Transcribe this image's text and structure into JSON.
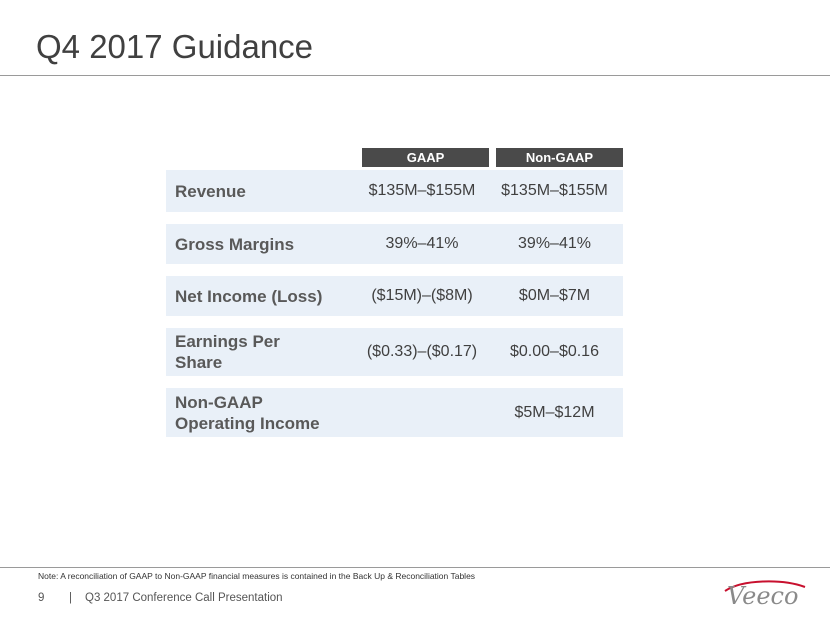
{
  "title": "Q4 2017 Guidance",
  "columns": {
    "gaap": "GAAP",
    "non_gaap": "Non-GAAP"
  },
  "rows": [
    {
      "label": "Revenue",
      "gaap": "$135M–$155M",
      "non_gaap": "$135M–$155M"
    },
    {
      "label": "Gross Margins",
      "gaap": "39%–41%",
      "non_gaap": "39%–41%"
    },
    {
      "label": "Net Income (Loss)",
      "gaap": "($15M)–($8M)",
      "non_gaap": "$0M–$7M"
    },
    {
      "label_line1": "Earnings Per",
      "label_line2": "Share",
      "gaap": "($0.33)–($0.17)",
      "non_gaap": "$0.00–$0.16"
    },
    {
      "label_line1": "Non-GAAP",
      "label_line2": "Operating Income",
      "gaap": "",
      "non_gaap": "$5M–$12M"
    }
  ],
  "note": "Note: A reconciliation of GAAP to Non-GAAP financial measures is contained in the Back Up & Reconciliation Tables",
  "footer": {
    "page_number": "9",
    "separator": "|",
    "presentation": "Q3 2017 Conference Call Presentation"
  },
  "logo": {
    "text": "Veeco",
    "color": "#8a8a8a",
    "accent_color": "#c8102e"
  }
}
